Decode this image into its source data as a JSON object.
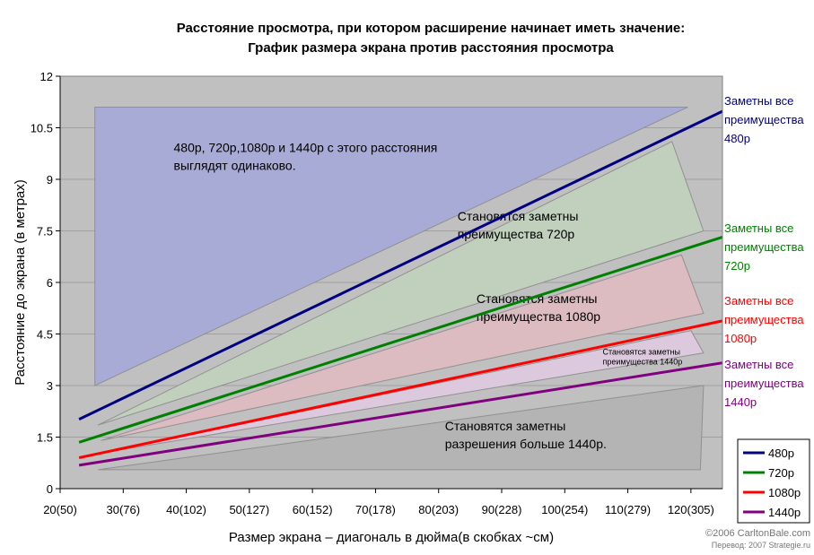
{
  "chart_data": {
    "type": "line",
    "title": "Расстояние просмотра, при котором расширение начинает иметь значение:",
    "subtitle": "График размера экрана против расстояния просмотра",
    "xlabel": "Размер экрана – диагональ в дюйма(в скобках ~см)",
    "ylabel": "Расстояние до экрана (в метрах)",
    "xlim": [
      20,
      125
    ],
    "ylim": [
      0,
      12
    ],
    "x_ticks": [
      {
        "value": 20,
        "label": "20(50)"
      },
      {
        "value": 30,
        "label": "30(76)"
      },
      {
        "value": 40,
        "label": "40(102)"
      },
      {
        "value": 50,
        "label": "50(127)"
      },
      {
        "value": 60,
        "label": "60(152)"
      },
      {
        "value": 70,
        "label": "70(178)"
      },
      {
        "value": 80,
        "label": "80(203)"
      },
      {
        "value": 90,
        "label": "90(228)"
      },
      {
        "value": 100,
        "label": "100(254)"
      },
      {
        "value": 110,
        "label": "110(279)"
      },
      {
        "value": 120,
        "label": "120(305)"
      }
    ],
    "y_ticks": [
      {
        "value": 0,
        "label": "0"
      },
      {
        "value": 1.5,
        "label": "1.5"
      },
      {
        "value": 3,
        "label": "3"
      },
      {
        "value": 4.5,
        "label": "4.5"
      },
      {
        "value": 6,
        "label": "6"
      },
      {
        "value": 7.5,
        "label": "7.5"
      },
      {
        "value": 9,
        "label": "9"
      },
      {
        "value": 10.5,
        "label": "10.5"
      },
      {
        "value": 12,
        "label": "12"
      }
    ],
    "grid": true,
    "legend_position": "bottom-right",
    "series": [
      {
        "name": "480p",
        "color": "#000080",
        "x": [
          23,
          125
        ],
        "y": [
          2.02,
          10.98
        ],
        "side_label": [
          "Заметны все",
          "преимущества",
          "480p"
        ]
      },
      {
        "name": "720p",
        "color": "#008000",
        "x": [
          23,
          125
        ],
        "y": [
          1.35,
          7.32
        ],
        "side_label": [
          "Заметны все",
          "преимущества",
          "720p"
        ]
      },
      {
        "name": "1080p",
        "color": "#ff0000",
        "x": [
          23,
          125
        ],
        "y": [
          0.9,
          4.88
        ],
        "side_label": [
          "Заметны все",
          "преимущества",
          "1080p"
        ]
      },
      {
        "name": "1440p",
        "color": "#800080",
        "x": [
          23,
          125
        ],
        "y": [
          0.68,
          3.66
        ],
        "side_label": [
          "Заметны все",
          "преимущества",
          "1440p"
        ]
      }
    ],
    "regions": [
      {
        "color": "#a8abd6",
        "points": [
          [
            25.5,
            3.0
          ],
          [
            25.5,
            11.1
          ],
          [
            119.5,
            11.1
          ]
        ],
        "label": [
          "480p, 720p,1080p и 1440p с этого расстояния",
          "выглядят одинаково."
        ],
        "label_pos": [
          38,
          9.8
        ],
        "label_size": "large"
      },
      {
        "color": "#c0d0bd",
        "points": [
          [
            26,
            1.85
          ],
          [
            117,
            10.1
          ],
          [
            122,
            7.5
          ]
        ],
        "label": [
          "Становятся заметны",
          "преимущества 720p"
        ],
        "label_pos": [
          83,
          7.8
        ],
        "label_size": "large"
      },
      {
        "color": "#dcbcc0",
        "points": [
          [
            26.5,
            1.4
          ],
          [
            118.5,
            6.8
          ],
          [
            122,
            5.1
          ]
        ],
        "label": [
          "Становятся заметны",
          "преимущества 1080p"
        ],
        "label_pos": [
          86,
          5.4
        ],
        "label_size": "large"
      },
      {
        "color": "#dcc9de",
        "points": [
          [
            27,
            1.05
          ],
          [
            120,
            4.6
          ],
          [
            122,
            3.95
          ]
        ],
        "label": [
          "Становятся заметны",
          "преимущества 1440p"
        ],
        "label_pos": [
          106,
          3.9
        ],
        "label_size": "small"
      },
      {
        "color": "#b4b4b4",
        "points": [
          [
            26,
            0.55
          ],
          [
            121.5,
            0.55
          ],
          [
            122,
            3.0
          ]
        ],
        "label": [
          "Становятся заметны",
          "разрешения больше 1440p."
        ],
        "label_pos": [
          81,
          1.7
        ],
        "label_size": "large"
      }
    ]
  },
  "credits": {
    "line1": "©2006 CarltonBale.com",
    "line2": "Перевод: 2007 Strategie.ru"
  }
}
